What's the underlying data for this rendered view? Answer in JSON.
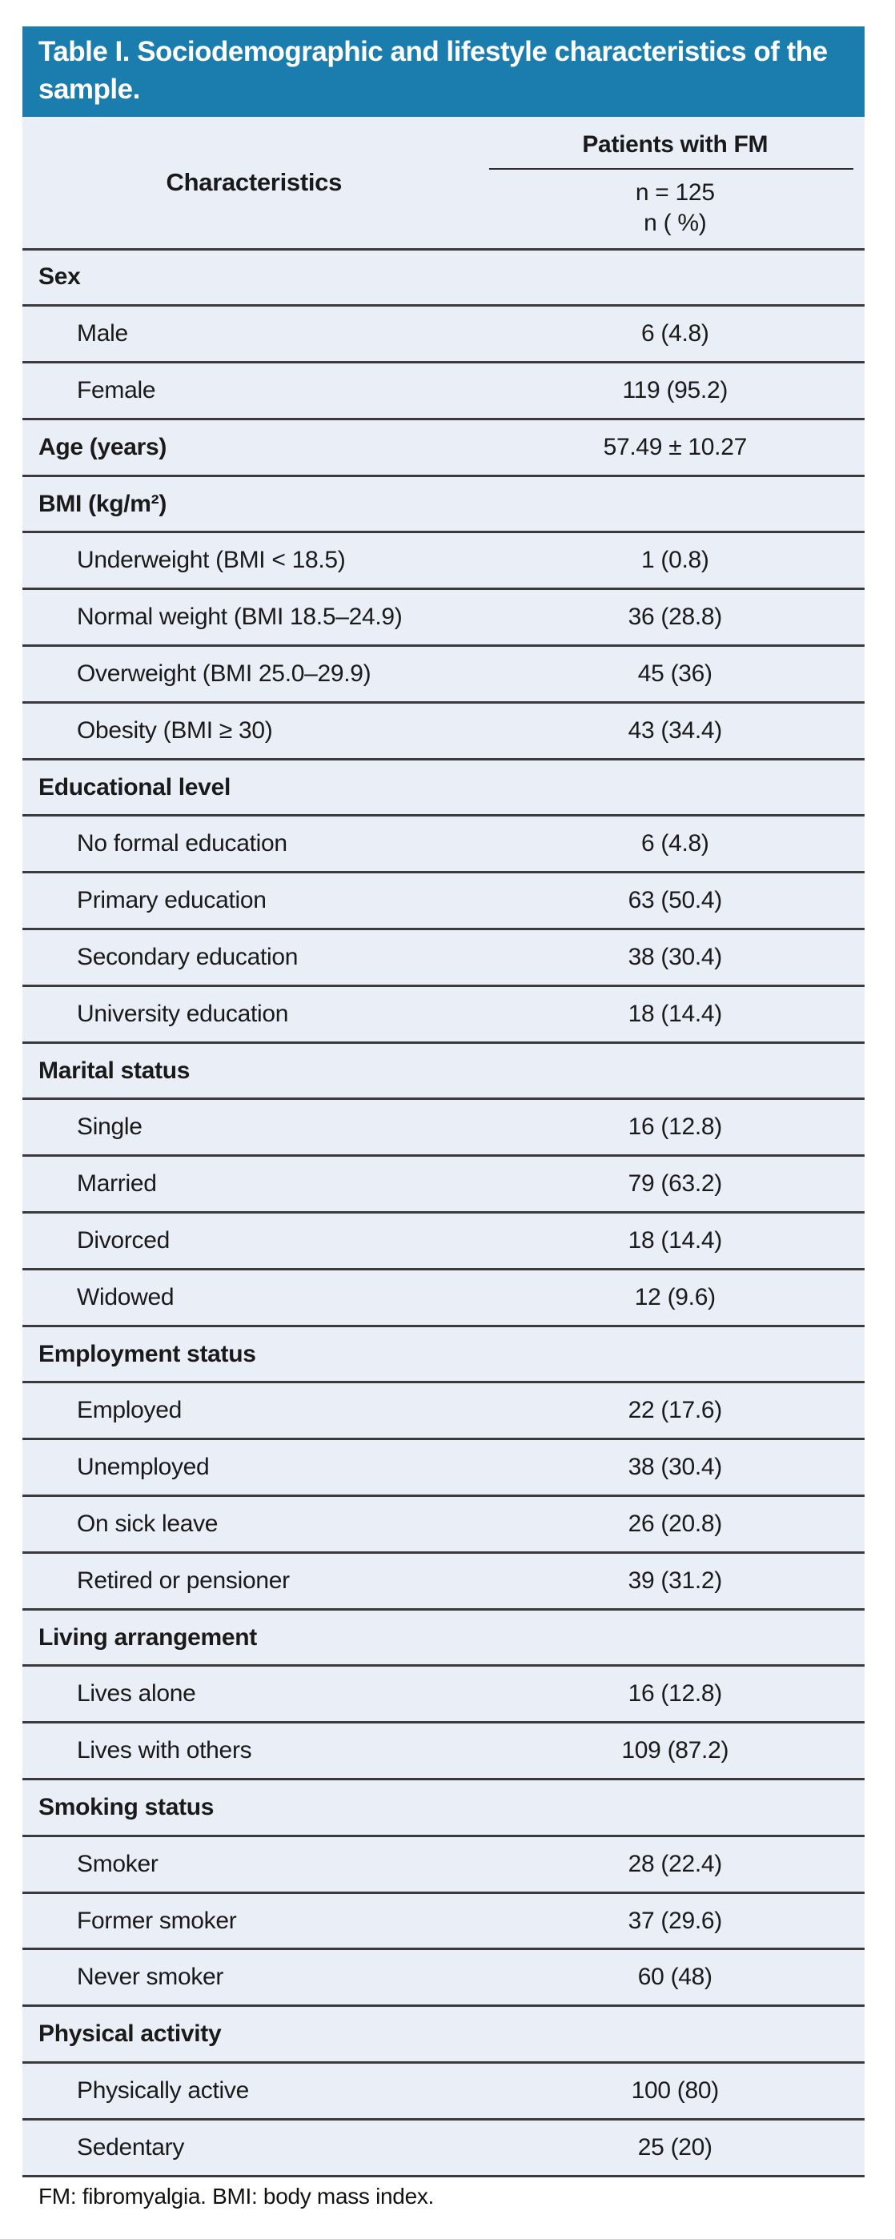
{
  "title": "Table I. Sociodemographic and lifestyle characteristics of the sample.",
  "columns": {
    "characteristics": "Characteristics",
    "group": "Patients with FM",
    "n_line1": "n = 125",
    "n_line2": "n ( %)"
  },
  "rows": [
    {
      "type": "section",
      "label": "Sex",
      "value": ""
    },
    {
      "type": "item",
      "label": "Male",
      "value": "6 (4.8)"
    },
    {
      "type": "item",
      "label": "Female",
      "value": "119 (95.2)"
    },
    {
      "type": "section_value",
      "label": "Age (years)",
      "value": "57.49 ± 10.27"
    },
    {
      "type": "section",
      "label": "BMI (kg/m²)",
      "value": ""
    },
    {
      "type": "item",
      "label": "Underweight (BMI < 18.5)",
      "value": "1 (0.8)"
    },
    {
      "type": "item",
      "label": "Normal weight (BMI 18.5–24.9)",
      "value": "36 (28.8)"
    },
    {
      "type": "item",
      "label": "Overweight (BMI 25.0–29.9)",
      "value": "45 (36)"
    },
    {
      "type": "item",
      "label": "Obesity (BMI ≥ 30)",
      "value": "43 (34.4)"
    },
    {
      "type": "section",
      "label": "Educational level",
      "value": ""
    },
    {
      "type": "item",
      "label": "No formal education",
      "value": "6 (4.8)"
    },
    {
      "type": "item",
      "label": "Primary education",
      "value": "63 (50.4)"
    },
    {
      "type": "item",
      "label": "Secondary education",
      "value": "38 (30.4)"
    },
    {
      "type": "item",
      "label": "University education",
      "value": "18 (14.4)"
    },
    {
      "type": "section",
      "label": "Marital status",
      "value": ""
    },
    {
      "type": "item",
      "label": "Single",
      "value": "16 (12.8)"
    },
    {
      "type": "item",
      "label": "Married",
      "value": "79 (63.2)"
    },
    {
      "type": "item",
      "label": "Divorced",
      "value": "18 (14.4)"
    },
    {
      "type": "item",
      "label": "Widowed",
      "value": "12 (9.6)"
    },
    {
      "type": "section",
      "label": "Employment status",
      "value": ""
    },
    {
      "type": "item",
      "label": "Employed",
      "value": "22 (17.6)"
    },
    {
      "type": "item",
      "label": "Unemployed",
      "value": "38 (30.4)"
    },
    {
      "type": "item",
      "label": "On sick leave",
      "value": "26 (20.8)"
    },
    {
      "type": "item",
      "label": "Retired or pensioner",
      "value": "39 (31.2)"
    },
    {
      "type": "section",
      "label": "Living arrangement",
      "value": ""
    },
    {
      "type": "item",
      "label": "Lives alone",
      "value": "16 (12.8)"
    },
    {
      "type": "item",
      "label": "Lives with others",
      "value": "109 (87.2)"
    },
    {
      "type": "section",
      "label": "Smoking status",
      "value": ""
    },
    {
      "type": "item",
      "label": "Smoker",
      "value": "28 (22.4)"
    },
    {
      "type": "item",
      "label": "Former smoker",
      "value": "37 (29.6)"
    },
    {
      "type": "item",
      "label": "Never smoker",
      "value": "60 (48)"
    },
    {
      "type": "section",
      "label": "Physical activity",
      "value": ""
    },
    {
      "type": "item",
      "label": "Physically active",
      "value": "100 (80)"
    },
    {
      "type": "item",
      "label": "Sedentary",
      "value": "25 (20)"
    }
  ],
  "footnote": "FM: fibromyalgia. BMI: body mass index.",
  "colors": {
    "header_bg": "#1b7dad",
    "row_bg": "#eaeef7",
    "line": "#3a3a3a",
    "text": "#1a1a1a",
    "title_text": "#ffffff",
    "page_bg": "#ffffff"
  }
}
